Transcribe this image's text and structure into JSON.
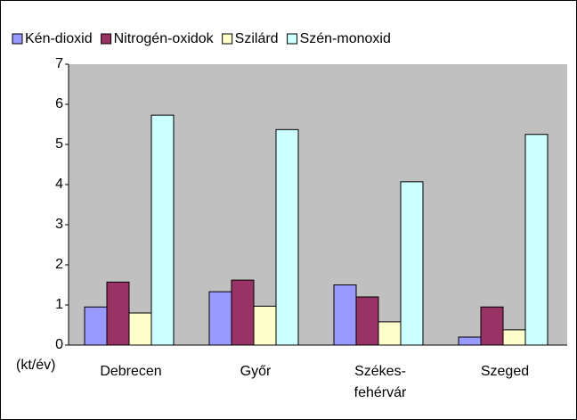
{
  "chart_data": {
    "type": "bar",
    "y_label": "(kt/év)",
    "categories": [
      "Debrecen",
      "Győr",
      "Székes-\nfehérvár",
      "Szeged"
    ],
    "series": [
      {
        "name": "Kén-dioxid",
        "color": "#9999ff",
        "values": [
          0.95,
          1.33,
          1.5,
          0.2
        ]
      },
      {
        "name": "Nitrogén-oxidok",
        "color": "#993366",
        "values": [
          1.57,
          1.62,
          1.2,
          0.95
        ]
      },
      {
        "name": "Szilárd",
        "color": "#ffffcc",
        "values": [
          0.8,
          0.97,
          0.58,
          0.38
        ]
      },
      {
        "name": "Szén-monoxid",
        "color": "#ccffff",
        "values": [
          5.73,
          5.37,
          4.07,
          5.25
        ]
      }
    ],
    "ylim": [
      0,
      7
    ],
    "yticks": [
      0,
      1,
      2,
      3,
      4,
      5,
      6,
      7
    ],
    "grid": false,
    "legend": "top"
  }
}
